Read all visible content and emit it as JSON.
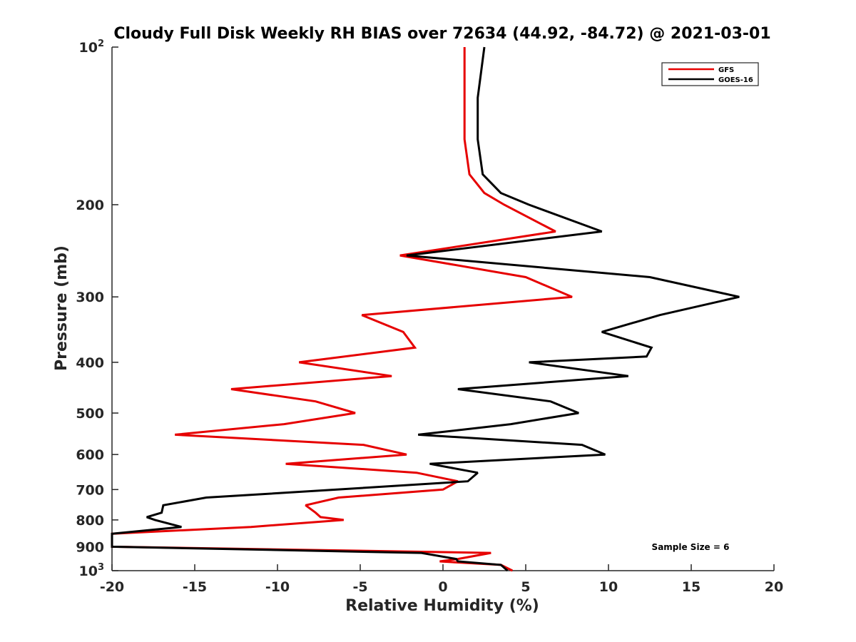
{
  "chart_data": {
    "type": "line",
    "title": "Cloudy Full Disk Weekly RH BIAS over 72634 (44.92, -84.72) @ 2021-03-01",
    "xlabel": "Relative Humidity (%)",
    "ylabel": "Pressure (mb)",
    "xlim": [
      -20,
      20
    ],
    "ylim": [
      100,
      1000
    ],
    "y_scale": "log",
    "y_reversed": true,
    "grid": false,
    "legend_position": "top-right",
    "x_ticks": [
      "-20",
      "-15",
      "-10",
      "-5",
      "0",
      "5",
      "10",
      "15",
      "20"
    ],
    "x_tick_values": [
      -20,
      -15,
      -10,
      -5,
      0,
      5,
      10,
      15,
      20
    ],
    "y_ticks": [
      {
        "value": 100,
        "base": "10",
        "exp": "2"
      },
      {
        "value": 200,
        "base": "200",
        "exp": ""
      },
      {
        "value": 300,
        "base": "300",
        "exp": ""
      },
      {
        "value": 400,
        "base": "400",
        "exp": ""
      },
      {
        "value": 500,
        "base": "500",
        "exp": ""
      },
      {
        "value": 600,
        "base": "600",
        "exp": ""
      },
      {
        "value": 700,
        "base": "700",
        "exp": ""
      },
      {
        "value": 800,
        "base": "800",
        "exp": ""
      },
      {
        "value": 900,
        "base": "900",
        "exp": ""
      },
      {
        "value": 1000,
        "base": "10",
        "exp": "3"
      }
    ],
    "annotation": "Sample Size = 6",
    "series": [
      {
        "name": "GFS",
        "color": "#e60000",
        "points": [
          [
            1.3,
            100
          ],
          [
            1.3,
            125
          ],
          [
            1.3,
            150
          ],
          [
            1.6,
            175
          ],
          [
            2.5,
            190
          ],
          [
            3.7,
            200
          ],
          [
            6.8,
            225
          ],
          [
            -2.6,
            250
          ],
          [
            5.0,
            275
          ],
          [
            7.8,
            300
          ],
          [
            -4.9,
            325
          ],
          [
            -2.4,
            350
          ],
          [
            -1.7,
            375
          ],
          [
            -8.7,
            400
          ],
          [
            -3.1,
            425
          ],
          [
            -12.8,
            450
          ],
          [
            -7.7,
            475
          ],
          [
            -5.3,
            500
          ],
          [
            -9.6,
            525
          ],
          [
            -16.2,
            550
          ],
          [
            -4.8,
            575
          ],
          [
            -2.2,
            600
          ],
          [
            -9.5,
            625
          ],
          [
            -1.6,
            650
          ],
          [
            0.9,
            675
          ],
          [
            0.0,
            700
          ],
          [
            -6.3,
            725
          ],
          [
            -8.3,
            750
          ],
          [
            -7.7,
            775
          ],
          [
            -7.4,
            790
          ],
          [
            -6.0,
            800
          ],
          [
            -11.6,
            825
          ],
          [
            -20.0,
            850
          ],
          [
            -20.0,
            875
          ],
          [
            -20.0,
            900
          ],
          [
            2.9,
            925
          ],
          [
            0.9,
            950
          ],
          [
            -0.2,
            960
          ],
          [
            3.5,
            975
          ],
          [
            4.2,
            1000
          ]
        ]
      },
      {
        "name": "GOES-16",
        "color": "#000000",
        "points": [
          [
            2.5,
            100
          ],
          [
            2.1,
            125
          ],
          [
            2.1,
            150
          ],
          [
            2.4,
            175
          ],
          [
            3.5,
            190
          ],
          [
            5.2,
            200
          ],
          [
            9.6,
            225
          ],
          [
            -2.2,
            250
          ],
          [
            12.5,
            275
          ],
          [
            17.9,
            300
          ],
          [
            13.1,
            325
          ],
          [
            9.6,
            350
          ],
          [
            12.6,
            375
          ],
          [
            12.3,
            390
          ],
          [
            5.2,
            400
          ],
          [
            11.2,
            425
          ],
          [
            0.9,
            450
          ],
          [
            6.5,
            475
          ],
          [
            8.2,
            500
          ],
          [
            4.1,
            525
          ],
          [
            -1.5,
            550
          ],
          [
            8.4,
            575
          ],
          [
            9.8,
            600
          ],
          [
            -0.8,
            625
          ],
          [
            2.1,
            650
          ],
          [
            1.5,
            675
          ],
          [
            -6.4,
            700
          ],
          [
            -14.3,
            725
          ],
          [
            -16.9,
            750
          ],
          [
            -17.0,
            775
          ],
          [
            -17.9,
            790
          ],
          [
            -17.4,
            800
          ],
          [
            -15.8,
            825
          ],
          [
            -20.0,
            850
          ],
          [
            -20.0,
            875
          ],
          [
            -20.0,
            900
          ],
          [
            -1.3,
            925
          ],
          [
            0.8,
            950
          ],
          [
            0.9,
            960
          ],
          [
            3.5,
            975
          ],
          [
            3.9,
            1000
          ]
        ]
      }
    ]
  }
}
